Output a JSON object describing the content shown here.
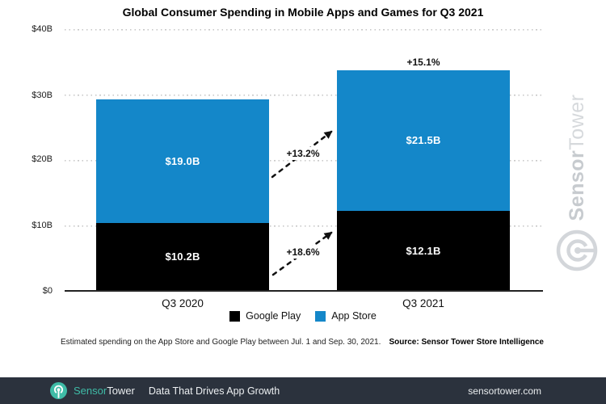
{
  "title": "Global Consumer Spending in Mobile Apps and Games for Q3 2021",
  "chart_data": {
    "type": "bar",
    "stacked": true,
    "categories": [
      "Q3 2020",
      "Q3 2021"
    ],
    "series": [
      {
        "name": "Google Play",
        "color": "#000000",
        "values": [
          10.2,
          12.1
        ],
        "value_labels": [
          "$10.2B",
          "$12.1B"
        ]
      },
      {
        "name": "App Store",
        "color": "#1487c9",
        "values": [
          19.0,
          21.5
        ],
        "value_labels": [
          "$19.0B",
          "$21.5B"
        ]
      }
    ],
    "annotations": {
      "total_growth": "+15.1%",
      "app_store_growth": "+13.2%",
      "google_play_growth": "+18.6%"
    },
    "ylim": [
      0,
      40
    ],
    "yticks": [
      "$0",
      "$10B",
      "$20B",
      "$30B",
      "$40B"
    ],
    "grid": "horizontal-dotted",
    "legend_position": "bottom"
  },
  "legend": {
    "items": [
      {
        "label": "Google Play",
        "color": "#000000"
      },
      {
        "label": "App Store",
        "color": "#1487c9"
      }
    ]
  },
  "notes": {
    "footnote": "Estimated spending on the App Store and Google Play between Jul. 1 and Sep. 30, 2021.",
    "source": "Source: Sensor Tower Store Intelligence"
  },
  "watermark": {
    "brand_bold": "Sensor",
    "brand_light": "Tower"
  },
  "footer": {
    "brand_primary": "Sensor",
    "brand_secondary": "Tower",
    "tagline": "Data That Drives App Growth",
    "website": "sensortower.com",
    "background": "#2b323d",
    "accent": "#3fbca7"
  }
}
